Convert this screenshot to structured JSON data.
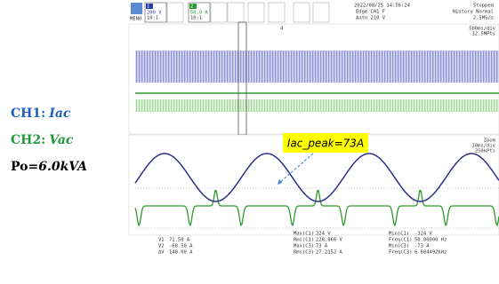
{
  "labels": [
    {
      "channel": "CH1:",
      "signal": "Iac"
    },
    {
      "channel": "CH2:",
      "signal": "Vac"
    },
    {
      "channel": "Po=",
      "signal": "6.0kVA"
    }
  ],
  "annotation": "Iac_peak=73A",
  "scope": {
    "menu": "MENU",
    "ch1": {
      "number": "1",
      "scale": "200 V",
      "probe": "10:1"
    },
    "ch2": {
      "number": "2",
      "scale": "50.0 A",
      "probe": "10:1"
    },
    "timestamp": "2022/08/25 14:56:24",
    "trigger": "Edge CH1 F",
    "trigger_level": "Auto 210 V",
    "status": "Stopped",
    "history": "History Normal",
    "sample_rate": "2.5MS/s",
    "marker": "4",
    "overview": {
      "timebase": "500ms/div",
      "points": "12.5MPts"
    },
    "zoom": {
      "label": "Zoom",
      "timebase": "10ms/div",
      "points": "250kPts"
    },
    "cursors": [
      [
        "V1",
        "71.50 A"
      ],
      [
        "V2",
        "-68.50 A"
      ],
      [
        "ΔV",
        "140.00 A"
      ]
    ],
    "measurements": [
      [
        [
          "Max(C1)",
          "324 V"
        ],
        [
          "Rms(C1)",
          "228.866 V"
        ],
        [
          "Max(C3)",
          "73 A"
        ],
        [
          "Rms(C3)",
          "27.2152 A"
        ]
      ],
      [
        [
          "Min(C1)",
          "-324 V"
        ],
        [
          "Freq(C1)",
          "50.00000 Hz"
        ],
        [
          "Min(C3)",
          "-73 A"
        ],
        [
          "Freq(C3)",
          "6.684492kHz"
        ]
      ]
    ]
  }
}
